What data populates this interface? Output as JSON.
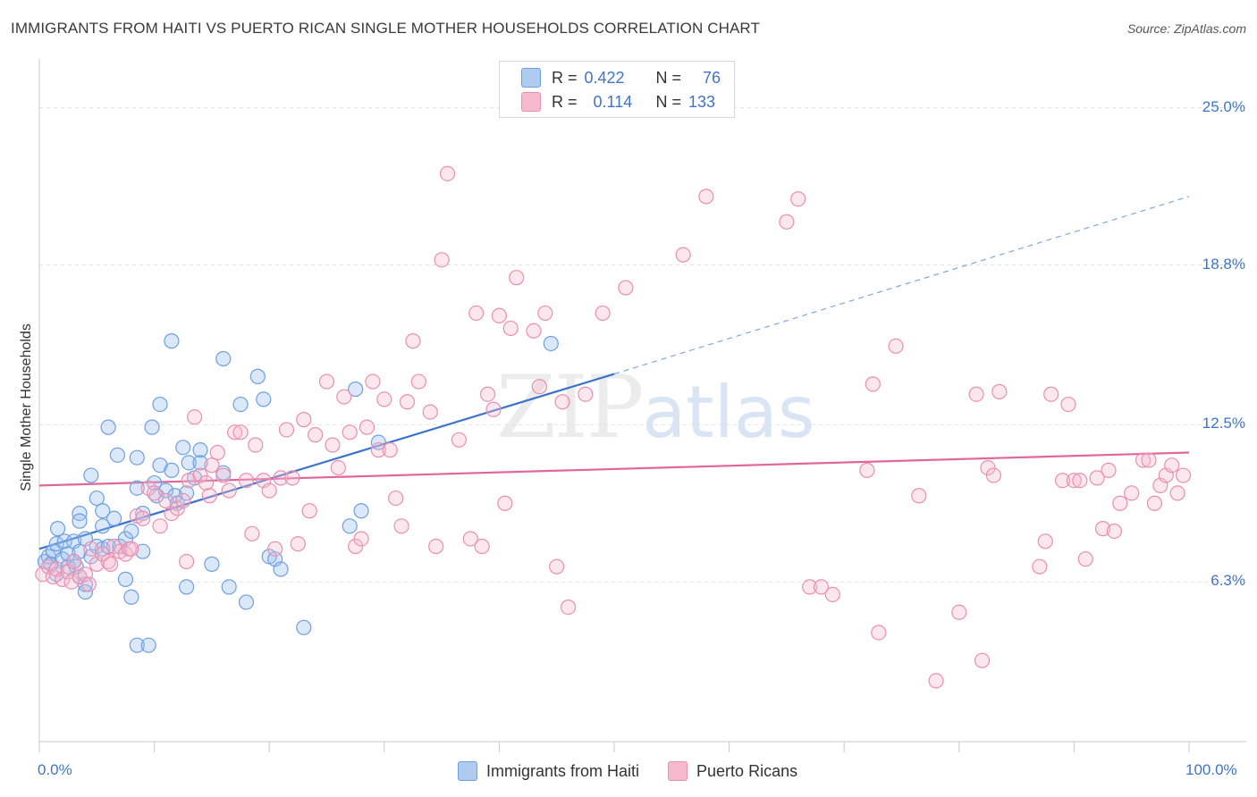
{
  "header": {
    "title": "IMMIGRANTS FROM HAITI VS PUERTO RICAN SINGLE MOTHER HOUSEHOLDS CORRELATION CHART",
    "source": "Source: ZipAtlas.com"
  },
  "watermark": {
    "zip": "ZIP",
    "atlas": "atlas"
  },
  "legend": {
    "rows": [
      {
        "r_label": "R =",
        "r_value": "0.422",
        "n_label": "N =",
        "n_value": "76",
        "color": "#aecbf0"
      },
      {
        "r_label": "R =",
        "r_value": "0.114",
        "n_label": "N =",
        "n_value": "133",
        "color": "#f6b9ce"
      }
    ]
  },
  "bottom_legend": [
    {
      "label": "Immigrants from Haiti",
      "color": "#aecbf0"
    },
    {
      "label": "Puerto Ricans",
      "color": "#f6b9ce"
    }
  ],
  "chart_data": {
    "type": "scatter",
    "title": "IMMIGRANTS FROM HAITI VS PUERTO RICAN SINGLE MOTHER HOUSEHOLDS CORRELATION CHART",
    "xlabel": "",
    "ylabel": "Single Mother Households",
    "xlim": [
      0,
      100
    ],
    "ylim": [
      0,
      26.5
    ],
    "x_tick_labels": [
      "0.0%",
      "100.0%"
    ],
    "y_ticks": [
      6.3,
      12.5,
      18.8,
      25.0
    ],
    "y_tick_labels": [
      "6.3%",
      "12.5%",
      "18.8%",
      "25.0%"
    ],
    "grid": true,
    "series": [
      {
        "name": "Immigrants from Haiti",
        "color": "#6f9fdf",
        "fill": "rgba(150,190,240,0.35)",
        "r": 0.422,
        "n": 76,
        "trend": {
          "x0": 0,
          "y0": 7.6,
          "x1": 50,
          "y1": 14.5,
          "dashed_to_x": 100,
          "dashed_to_y": 21.5
        },
        "points": [
          [
            0.5,
            7.1
          ],
          [
            0.8,
            7.3
          ],
          [
            1.0,
            7.0
          ],
          [
            1.2,
            7.5
          ],
          [
            1.5,
            7.8
          ],
          [
            1.5,
            6.6
          ],
          [
            1.6,
            8.4
          ],
          [
            2.0,
            7.2
          ],
          [
            2.2,
            7.9
          ],
          [
            2.5,
            6.9
          ],
          [
            2.5,
            7.4
          ],
          [
            3.0,
            7.9
          ],
          [
            3.0,
            7.1
          ],
          [
            3.5,
            7.5
          ],
          [
            3.2,
            6.9
          ],
          [
            3.5,
            6.5
          ],
          [
            3.5,
            9.0
          ],
          [
            3.5,
            8.7
          ],
          [
            4.0,
            8.0
          ],
          [
            4.0,
            6.2
          ],
          [
            4.0,
            5.9
          ],
          [
            4.5,
            7.3
          ],
          [
            4.5,
            10.5
          ],
          [
            5.0,
            7.7
          ],
          [
            5.0,
            9.6
          ],
          [
            5.5,
            8.5
          ],
          [
            5.5,
            9.1
          ],
          [
            5.5,
            7.6
          ],
          [
            6.0,
            7.7
          ],
          [
            6.5,
            8.8
          ],
          [
            6.0,
            12.4
          ],
          [
            6.8,
            11.3
          ],
          [
            7.0,
            7.7
          ],
          [
            7.5,
            8.0
          ],
          [
            7.5,
            6.4
          ],
          [
            8.0,
            8.3
          ],
          [
            8.0,
            5.7
          ],
          [
            8.5,
            10.0
          ],
          [
            8.5,
            11.2
          ],
          [
            8.5,
            3.8
          ],
          [
            9.0,
            9.0
          ],
          [
            9.0,
            7.5
          ],
          [
            9.5,
            3.8
          ],
          [
            9.8,
            12.4
          ],
          [
            10.0,
            10.2
          ],
          [
            10.2,
            9.7
          ],
          [
            10.5,
            10.9
          ],
          [
            10.5,
            13.3
          ],
          [
            11.0,
            9.9
          ],
          [
            11.5,
            10.7
          ],
          [
            11.5,
            15.8
          ],
          [
            11.8,
            9.7
          ],
          [
            12.0,
            9.4
          ],
          [
            12.5,
            11.6
          ],
          [
            12.8,
            9.8
          ],
          [
            12.8,
            6.1
          ],
          [
            13.0,
            11.0
          ],
          [
            13.5,
            10.4
          ],
          [
            14.0,
            11.5
          ],
          [
            14.0,
            11.0
          ],
          [
            15.0,
            7.0
          ],
          [
            16.0,
            10.6
          ],
          [
            16.0,
            15.1
          ],
          [
            16.5,
            6.1
          ],
          [
            17.5,
            13.3
          ],
          [
            18.0,
            5.5
          ],
          [
            19.0,
            14.4
          ],
          [
            19.5,
            13.5
          ],
          [
            20.0,
            7.3
          ],
          [
            20.5,
            7.2
          ],
          [
            21.0,
            6.8
          ],
          [
            23.0,
            4.5
          ],
          [
            27.0,
            8.5
          ],
          [
            27.5,
            13.9
          ],
          [
            28.0,
            9.1
          ],
          [
            29.5,
            11.8
          ],
          [
            44.5,
            15.7
          ]
        ]
      },
      {
        "name": "Puerto Ricans",
        "color": "#e98fb0",
        "fill": "rgba(246,185,206,0.35)",
        "r": 0.114,
        "n": 133,
        "trend": {
          "x0": 0,
          "y0": 10.1,
          "x1": 100,
          "y1": 11.4
        },
        "points": [
          [
            0.3,
            6.6
          ],
          [
            0.8,
            6.9
          ],
          [
            1.2,
            6.5
          ],
          [
            1.5,
            6.8
          ],
          [
            2.0,
            6.4
          ],
          [
            2.5,
            6.7
          ],
          [
            2.8,
            6.3
          ],
          [
            3.0,
            7.1
          ],
          [
            3.5,
            6.5
          ],
          [
            4.0,
            6.6
          ],
          [
            4.3,
            6.2
          ],
          [
            4.5,
            7.6
          ],
          [
            5.0,
            7.0
          ],
          [
            5.5,
            7.4
          ],
          [
            6.0,
            7.1
          ],
          [
            6.2,
            7.0
          ],
          [
            6.5,
            7.7
          ],
          [
            7.0,
            7.5
          ],
          [
            7.5,
            7.4
          ],
          [
            7.8,
            7.6
          ],
          [
            8.0,
            7.6
          ],
          [
            8.5,
            8.9
          ],
          [
            9.0,
            8.8
          ],
          [
            9.5,
            10.0
          ],
          [
            10.0,
            9.8
          ],
          [
            10.5,
            8.5
          ],
          [
            11.0,
            9.5
          ],
          [
            11.5,
            9.0
          ],
          [
            12.0,
            9.2
          ],
          [
            12.5,
            9.5
          ],
          [
            12.8,
            7.1
          ],
          [
            13.0,
            10.3
          ],
          [
            13.5,
            12.8
          ],
          [
            14.0,
            10.5
          ],
          [
            14.5,
            10.2
          ],
          [
            14.8,
            9.7
          ],
          [
            15.0,
            10.9
          ],
          [
            15.5,
            11.4
          ],
          [
            16.0,
            10.5
          ],
          [
            16.5,
            9.9
          ],
          [
            17.0,
            12.2
          ],
          [
            17.5,
            12.2
          ],
          [
            18.0,
            10.3
          ],
          [
            18.5,
            8.2
          ],
          [
            18.8,
            11.7
          ],
          [
            19.5,
            10.3
          ],
          [
            20.0,
            9.9
          ],
          [
            20.5,
            7.6
          ],
          [
            21.0,
            10.4
          ],
          [
            21.5,
            12.3
          ],
          [
            22.0,
            10.4
          ],
          [
            22.5,
            7.8
          ],
          [
            23.0,
            12.7
          ],
          [
            23.5,
            9.1
          ],
          [
            24.0,
            12.1
          ],
          [
            25.0,
            14.2
          ],
          [
            25.5,
            11.7
          ],
          [
            26.0,
            10.8
          ],
          [
            26.5,
            13.6
          ],
          [
            27.0,
            12.2
          ],
          [
            27.5,
            7.7
          ],
          [
            28.0,
            8.0
          ],
          [
            28.5,
            12.4
          ],
          [
            29.0,
            14.2
          ],
          [
            29.5,
            11.5
          ],
          [
            30.0,
            13.5
          ],
          [
            30.5,
            11.5
          ],
          [
            31.0,
            9.6
          ],
          [
            31.5,
            8.5
          ],
          [
            32.0,
            13.4
          ],
          [
            32.5,
            15.8
          ],
          [
            33.0,
            14.2
          ],
          [
            34.0,
            13.0
          ],
          [
            34.5,
            7.7
          ],
          [
            35.0,
            19.0
          ],
          [
            35.5,
            22.4
          ],
          [
            36.5,
            11.9
          ],
          [
            37.5,
            8.0
          ],
          [
            38.0,
            16.9
          ],
          [
            38.5,
            7.7
          ],
          [
            39.0,
            13.7
          ],
          [
            39.5,
            13.1
          ],
          [
            40.0,
            16.8
          ],
          [
            40.5,
            9.4
          ],
          [
            41.0,
            16.3
          ],
          [
            41.5,
            18.3
          ],
          [
            43.0,
            16.2
          ],
          [
            43.5,
            14.0
          ],
          [
            44.0,
            16.9
          ],
          [
            45.0,
            6.9
          ],
          [
            45.5,
            13.4
          ],
          [
            46.0,
            5.3
          ],
          [
            47.5,
            13.7
          ],
          [
            49.0,
            16.9
          ],
          [
            51.0,
            17.9
          ],
          [
            56.0,
            19.2
          ],
          [
            58.0,
            21.5
          ],
          [
            65.0,
            20.5
          ],
          [
            66.0,
            21.4
          ],
          [
            67.0,
            6.1
          ],
          [
            68.0,
            6.1
          ],
          [
            69.0,
            5.8
          ],
          [
            72.0,
            10.7
          ],
          [
            72.5,
            14.1
          ],
          [
            73.0,
            4.3
          ],
          [
            74.5,
            15.6
          ],
          [
            76.5,
            9.7
          ],
          [
            78.0,
            2.4
          ],
          [
            80.0,
            5.1
          ],
          [
            81.5,
            13.7
          ],
          [
            82.0,
            3.2
          ],
          [
            82.5,
            10.8
          ],
          [
            83.0,
            10.5
          ],
          [
            83.5,
            13.8
          ],
          [
            87.0,
            6.9
          ],
          [
            87.5,
            7.9
          ],
          [
            88.0,
            13.7
          ],
          [
            89.0,
            10.3
          ],
          [
            89.5,
            13.3
          ],
          [
            90.0,
            10.3
          ],
          [
            90.5,
            10.3
          ],
          [
            91.0,
            7.2
          ],
          [
            92.0,
            10.4
          ],
          [
            92.5,
            8.4
          ],
          [
            93.0,
            10.7
          ],
          [
            93.5,
            8.3
          ],
          [
            94.0,
            9.4
          ],
          [
            95.0,
            9.8
          ],
          [
            96.0,
            11.1
          ],
          [
            96.5,
            11.1
          ],
          [
            97.0,
            9.4
          ],
          [
            97.5,
            10.1
          ],
          [
            98.0,
            10.5
          ],
          [
            98.5,
            10.9
          ],
          [
            99.0,
            9.8
          ],
          [
            99.5,
            10.5
          ]
        ]
      }
    ]
  }
}
